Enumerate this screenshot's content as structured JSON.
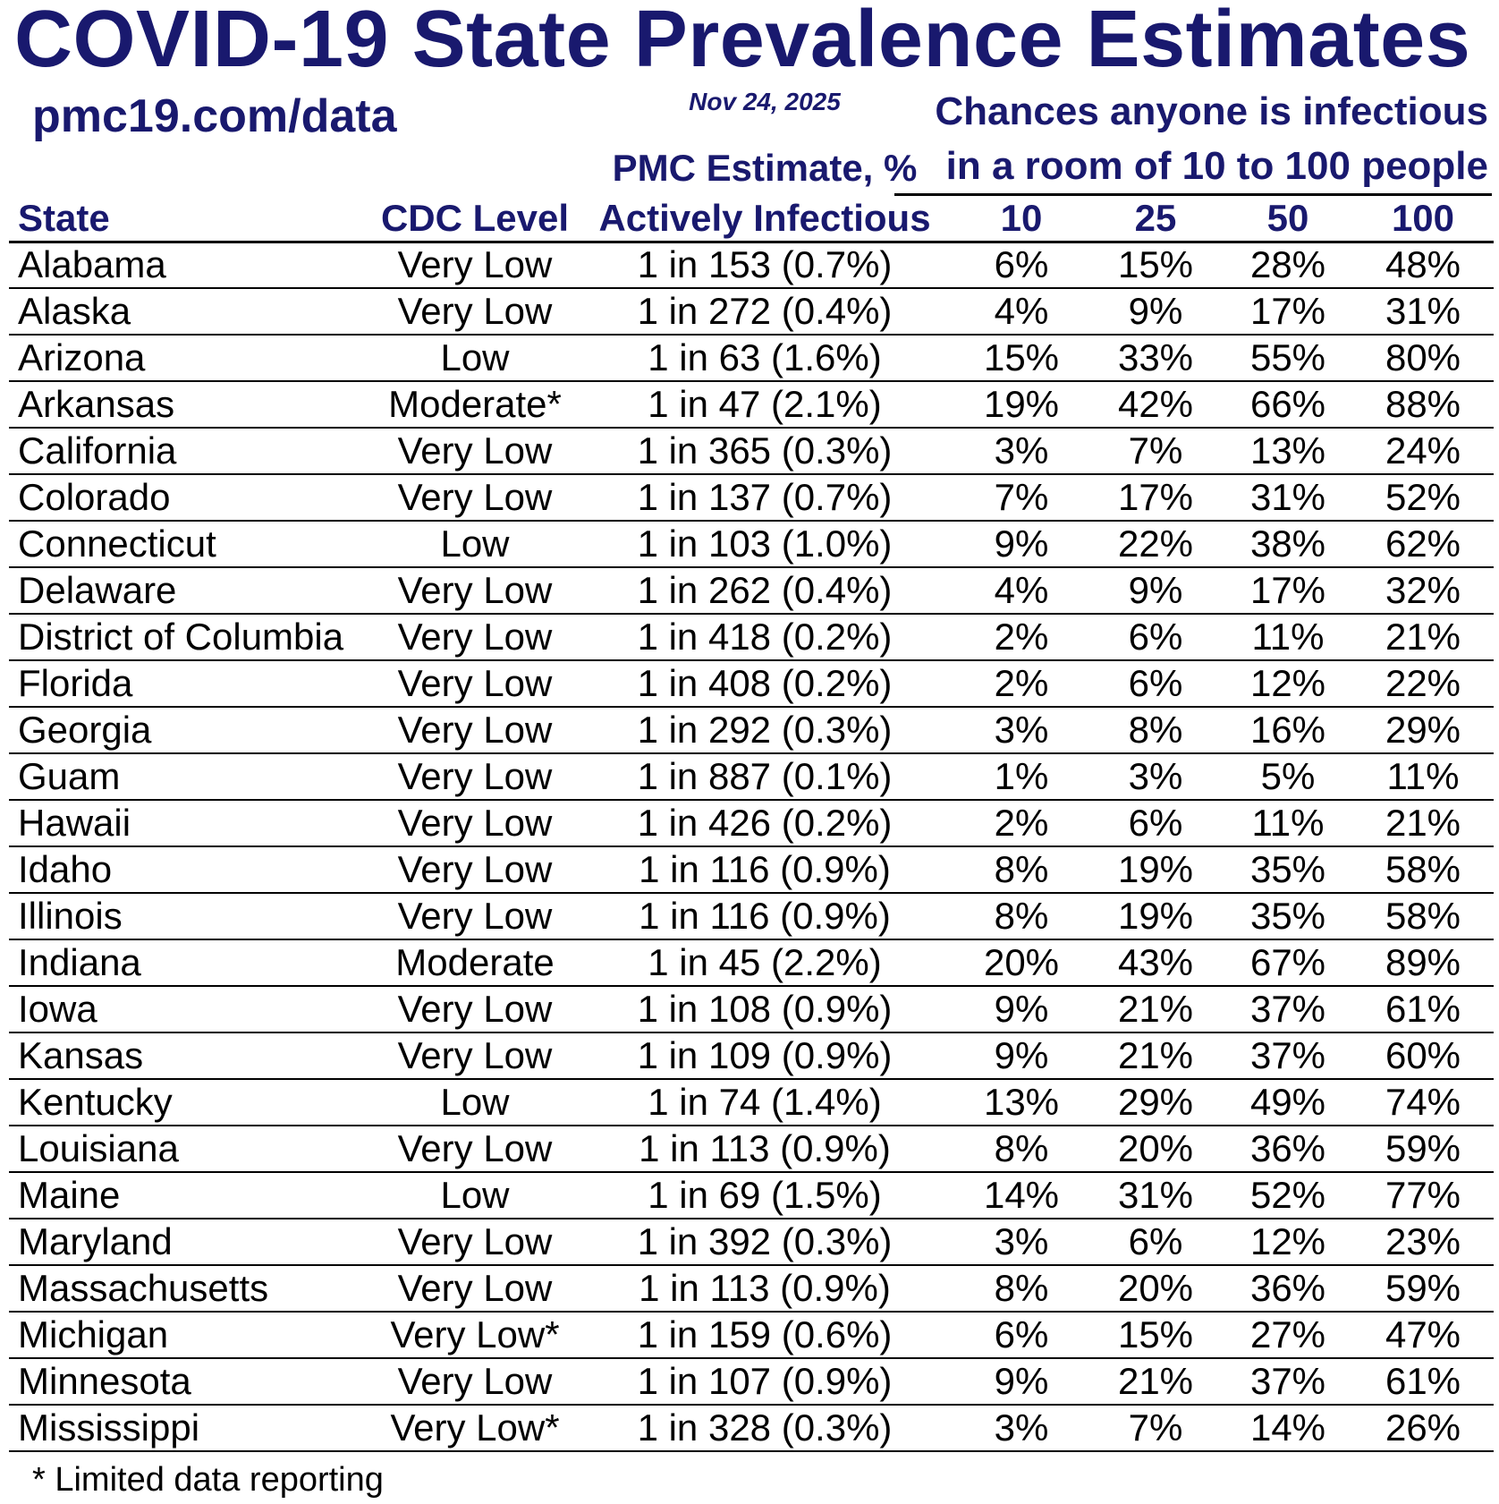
{
  "header": {
    "title": "COVID-19 State Prevalence Estimates",
    "site": "pmc19.com/data",
    "date": "Nov 24, 2025",
    "pmc_estimate_label": "PMC Estimate, %",
    "chances_line1": "Chances anyone is infectious",
    "chances_line2": "in a room of 10 to 100 people"
  },
  "chart_data": {
    "type": "table",
    "title": "COVID-19 State Prevalence Estimates",
    "columns": [
      "State",
      "CDC Level",
      "Actively Infectious",
      "10",
      "25",
      "50",
      "100"
    ],
    "rows": [
      [
        "Alabama",
        "Very Low",
        "1 in 153 (0.7%)",
        "6%",
        "15%",
        "28%",
        "48%"
      ],
      [
        "Alaska",
        "Very Low",
        "1 in 272 (0.4%)",
        "4%",
        "9%",
        "17%",
        "31%"
      ],
      [
        "Arizona",
        "Low",
        "1 in 63 (1.6%)",
        "15%",
        "33%",
        "55%",
        "80%"
      ],
      [
        "Arkansas",
        "Moderate*",
        "1 in 47 (2.1%)",
        "19%",
        "42%",
        "66%",
        "88%"
      ],
      [
        "California",
        "Very Low",
        "1 in 365 (0.3%)",
        "3%",
        "7%",
        "13%",
        "24%"
      ],
      [
        "Colorado",
        "Very Low",
        "1 in 137 (0.7%)",
        "7%",
        "17%",
        "31%",
        "52%"
      ],
      [
        "Connecticut",
        "Low",
        "1 in 103 (1.0%)",
        "9%",
        "22%",
        "38%",
        "62%"
      ],
      [
        "Delaware",
        "Very Low",
        "1 in 262 (0.4%)",
        "4%",
        "9%",
        "17%",
        "32%"
      ],
      [
        "District of Columbia",
        "Very Low",
        "1 in 418 (0.2%)",
        "2%",
        "6%",
        "11%",
        "21%"
      ],
      [
        "Florida",
        "Very Low",
        "1 in 408 (0.2%)",
        "2%",
        "6%",
        "12%",
        "22%"
      ],
      [
        "Georgia",
        "Very Low",
        "1 in 292 (0.3%)",
        "3%",
        "8%",
        "16%",
        "29%"
      ],
      [
        "Guam",
        "Very Low",
        "1 in 887 (0.1%)",
        "1%",
        "3%",
        "5%",
        "11%"
      ],
      [
        "Hawaii",
        "Very Low",
        "1 in 426 (0.2%)",
        "2%",
        "6%",
        "11%",
        "21%"
      ],
      [
        "Idaho",
        "Very Low",
        "1 in 116 (0.9%)",
        "8%",
        "19%",
        "35%",
        "58%"
      ],
      [
        "Illinois",
        "Very Low",
        "1 in 116 (0.9%)",
        "8%",
        "19%",
        "35%",
        "58%"
      ],
      [
        "Indiana",
        "Moderate",
        "1 in 45 (2.2%)",
        "20%",
        "43%",
        "67%",
        "89%"
      ],
      [
        "Iowa",
        "Very Low",
        "1 in 108 (0.9%)",
        "9%",
        "21%",
        "37%",
        "61%"
      ],
      [
        "Kansas",
        "Very Low",
        "1 in 109 (0.9%)",
        "9%",
        "21%",
        "37%",
        "60%"
      ],
      [
        "Kentucky",
        "Low",
        "1 in 74 (1.4%)",
        "13%",
        "29%",
        "49%",
        "74%"
      ],
      [
        "Louisiana",
        "Very Low",
        "1 in 113 (0.9%)",
        "8%",
        "20%",
        "36%",
        "59%"
      ],
      [
        "Maine",
        "Low",
        "1 in 69 (1.5%)",
        "14%",
        "31%",
        "52%",
        "77%"
      ],
      [
        "Maryland",
        "Very Low",
        "1 in 392 (0.3%)",
        "3%",
        "6%",
        "12%",
        "23%"
      ],
      [
        "Massachusetts",
        "Very Low",
        "1 in 113 (0.9%)",
        "8%",
        "20%",
        "36%",
        "59%"
      ],
      [
        "Michigan",
        "Very Low*",
        "1 in 159 (0.6%)",
        "6%",
        "15%",
        "27%",
        "47%"
      ],
      [
        "Minnesota",
        "Very Low",
        "1 in 107 (0.9%)",
        "9%",
        "21%",
        "37%",
        "61%"
      ],
      [
        "Mississippi",
        "Very Low*",
        "1 in 328 (0.3%)",
        "3%",
        "7%",
        "14%",
        "26%"
      ]
    ]
  },
  "footnote": "* Limited data reporting",
  "colors": {
    "navy": "#19196E",
    "text": "#000000",
    "line": "#000000",
    "background": "#FFFFFF"
  }
}
